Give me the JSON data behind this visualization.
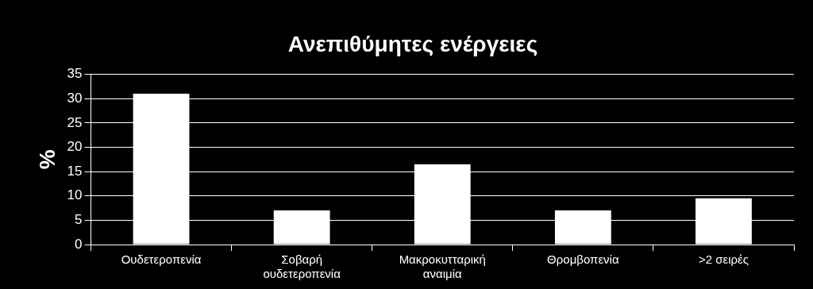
{
  "chart_data": {
    "type": "bar",
    "title": "Ανεπιθύμητες ενέργειες",
    "ylabel": "%",
    "categories": [
      "Ουδετεροπενία",
      "Σοβαρή ουδετεροπενία",
      "Μακροκυτταρική αναιμία",
      "Θρομβοπενία",
      ">2 σειρές"
    ],
    "values": [
      31,
      7,
      16.5,
      7,
      9.5
    ],
    "color": "#ffffff",
    "ylim": [
      0,
      35
    ],
    "yticks": [
      0,
      5,
      10,
      15,
      20,
      25,
      30,
      35
    ],
    "grid": "y",
    "legend": false
  }
}
